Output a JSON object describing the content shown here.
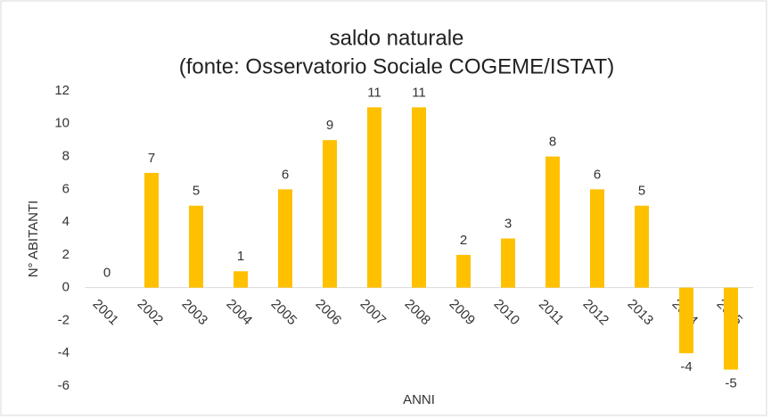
{
  "chart_data": {
    "type": "bar",
    "title": "saldo naturale",
    "subtitle": "(fonte: Osservatorio Sociale COGEME/ISTAT)",
    "x_label": "ANNI",
    "y_label": "N° ABITANTI",
    "categories": [
      "2001",
      "2002",
      "2003",
      "2004",
      "2005",
      "2006",
      "2007",
      "2008",
      "2009",
      "2010",
      "2011",
      "2012",
      "2013",
      "2014",
      "2015"
    ],
    "values": [
      0,
      7,
      5,
      1,
      6,
      9,
      11,
      11,
      2,
      3,
      8,
      6,
      5,
      -4,
      -5
    ],
    "color": "#ffc000",
    "ylim": [
      -6,
      12
    ],
    "yticks": [
      -6,
      -4,
      -2,
      0,
      2,
      4,
      6,
      8,
      10,
      12
    ],
    "grid": false
  }
}
